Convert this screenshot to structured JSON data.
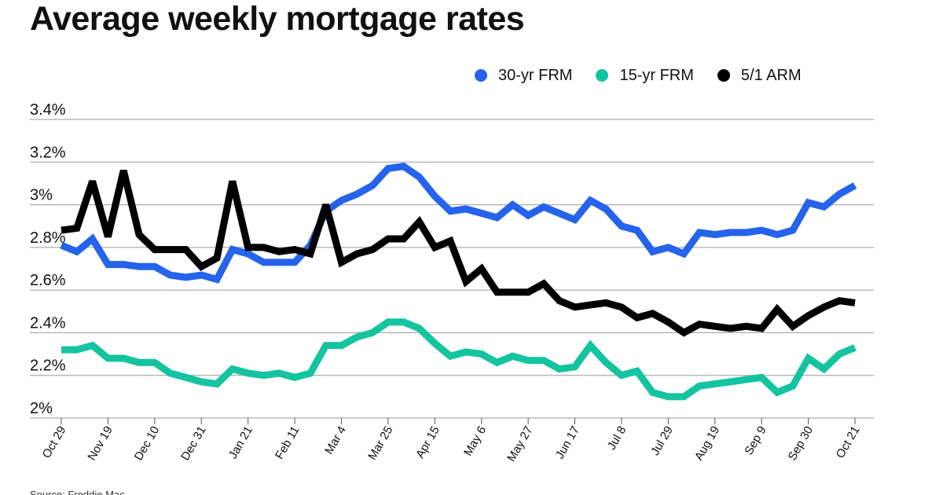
{
  "title": "Average weekly mortgage rates",
  "source": "Source: Freddie Mac",
  "legend": [
    {
      "label": "30-yr FRM",
      "color": "#2563eb"
    },
    {
      "label": "15-yr FRM",
      "color": "#14c4a0"
    },
    {
      "label": "5/1 ARM",
      "color": "#000000"
    }
  ],
  "chart_data": {
    "type": "line",
    "title": "Average weekly mortgage rates",
    "xlabel": "",
    "ylabel": "",
    "ylim": [
      2.0,
      3.4
    ],
    "yticks": [
      2.0,
      2.2,
      2.4,
      2.6,
      2.8,
      3.0,
      3.2,
      3.4
    ],
    "ytick_labels": [
      "2%",
      "2.2%",
      "2.4%",
      "2.6%",
      "2.8%",
      "3%",
      "3.2%",
      "3.4%"
    ],
    "grid": true,
    "legend_position": "top-right",
    "xtick_labels": [
      {
        "index": 0,
        "label": "Oct 29"
      },
      {
        "index": 3,
        "label": "Nov 19"
      },
      {
        "index": 6,
        "label": "Dec 10"
      },
      {
        "index": 9,
        "label": "Dec 31"
      },
      {
        "index": 12,
        "label": "Jan 21"
      },
      {
        "index": 15,
        "label": "Feb 11"
      },
      {
        "index": 18,
        "label": "Mar 4"
      },
      {
        "index": 21,
        "label": "Mar 25"
      },
      {
        "index": 24,
        "label": "Apr 15"
      },
      {
        "index": 27,
        "label": "May 6"
      },
      {
        "index": 30,
        "label": "May 27"
      },
      {
        "index": 33,
        "label": "Jun 17"
      },
      {
        "index": 36,
        "label": "Jul 8"
      },
      {
        "index": 39,
        "label": "Jul 29"
      },
      {
        "index": 42,
        "label": "Aug 19"
      },
      {
        "index": 45,
        "label": "Sep 9"
      },
      {
        "index": 48,
        "label": "Sep 30"
      },
      {
        "index": 51,
        "label": "Oct 21"
      }
    ],
    "series": [
      {
        "name": "30-yr FRM",
        "color": "#2563eb",
        "values": [
          2.81,
          2.78,
          2.84,
          2.72,
          2.72,
          2.71,
          2.71,
          2.67,
          2.66,
          2.67,
          2.65,
          2.79,
          2.77,
          2.73,
          2.73,
          2.73,
          2.81,
          2.97,
          3.02,
          3.05,
          3.09,
          3.17,
          3.18,
          3.13,
          3.04,
          2.97,
          2.98,
          2.96,
          2.94,
          3.0,
          2.95,
          2.99,
          2.96,
          2.93,
          3.02,
          2.98,
          2.9,
          2.88,
          2.78,
          2.8,
          2.77,
          2.87,
          2.86,
          2.87,
          2.87,
          2.88,
          2.86,
          2.88,
          3.01,
          2.99,
          3.05,
          3.09
        ]
      },
      {
        "name": "15-yr FRM",
        "color": "#14c4a0",
        "values": [
          2.32,
          2.32,
          2.34,
          2.28,
          2.28,
          2.26,
          2.26,
          2.21,
          2.19,
          2.17,
          2.16,
          2.23,
          2.21,
          2.2,
          2.21,
          2.19,
          2.21,
          2.34,
          2.34,
          2.38,
          2.4,
          2.45,
          2.45,
          2.42,
          2.35,
          2.29,
          2.31,
          2.3,
          2.26,
          2.29,
          2.27,
          2.27,
          2.23,
          2.24,
          2.34,
          2.26,
          2.2,
          2.22,
          2.12,
          2.1,
          2.1,
          2.15,
          2.16,
          2.17,
          2.18,
          2.19,
          2.12,
          2.15,
          2.28,
          2.23,
          2.3,
          2.33
        ]
      },
      {
        "name": "5/1 ARM",
        "color": "#000000",
        "values": [
          2.88,
          2.89,
          3.11,
          2.85,
          3.16,
          2.86,
          2.79,
          2.79,
          2.79,
          2.71,
          2.75,
          3.11,
          2.8,
          2.8,
          2.78,
          2.79,
          2.77,
          3.0,
          2.73,
          2.77,
          2.79,
          2.84,
          2.84,
          2.92,
          2.8,
          2.83,
          2.64,
          2.7,
          2.59,
          2.59,
          2.59,
          2.63,
          2.55,
          2.52,
          2.53,
          2.54,
          2.52,
          2.47,
          2.49,
          2.45,
          2.4,
          2.44,
          2.43,
          2.42,
          2.43,
          2.42,
          2.51,
          2.43,
          2.48,
          2.52,
          2.55,
          2.54
        ]
      }
    ]
  }
}
